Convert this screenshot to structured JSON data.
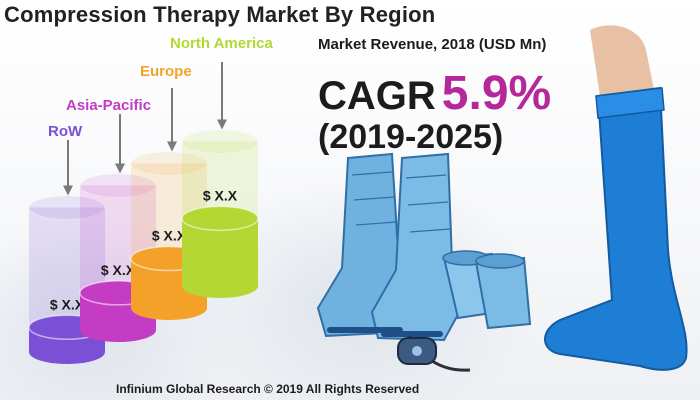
{
  "header": {
    "title": "Compression Therapy Market By Region",
    "subtitle": "Market Revenue, 2018 (USD Mn)"
  },
  "cagr": {
    "label": "CAGR",
    "value": "5.9%",
    "period": "(2019-2025)"
  },
  "footer": {
    "credit": "Infinium Global Research © 2019 All Rights Reserved"
  },
  "colors": {
    "rest_of_world": "#7b4fd6",
    "asia_pacific": "#c43bc4",
    "europe": "#f4a12a",
    "north_america": "#b4d734",
    "cagr_value": "#b5289c",
    "stocking": "#1e7ed6",
    "boots": "#6fb2e0"
  },
  "illustrations": [
    "compression-boots-icon",
    "compression-stocking-icon",
    "controller-icon"
  ],
  "chart_data": {
    "type": "bar",
    "categories": [
      "RoW",
      "Asia-Pacific",
      "Europe",
      "North America"
    ],
    "value_labels": [
      "$ X.X",
      "$ X.X",
      "$ X.X",
      "$ X.X"
    ],
    "relative_fill": [
      0.3,
      0.45,
      0.6,
      0.82
    ],
    "category_colors": [
      "#7b4fd6",
      "#c43bc4",
      "#f4a12a",
      "#b4d734"
    ],
    "legend": "none",
    "grid": false
  }
}
